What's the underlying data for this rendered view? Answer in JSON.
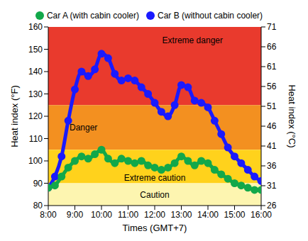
{
  "chart_data": {
    "type": "line",
    "x": [
      8,
      8.25,
      8.5,
      8.75,
      9,
      9.25,
      9.5,
      9.75,
      10,
      10.25,
      10.5,
      10.75,
      11,
      11.25,
      11.5,
      11.75,
      12,
      12.25,
      12.5,
      12.75,
      13,
      13.25,
      13.5,
      13.75,
      14,
      14.25,
      14.5,
      14.75,
      15,
      15.25,
      15.5,
      15.75,
      16
    ],
    "xlim": [
      8,
      16
    ],
    "xticks": [
      {
        "value": 8,
        "label": "8:00"
      },
      {
        "value": 9,
        "label": "9:00"
      },
      {
        "value": 10,
        "label": "10:00"
      },
      {
        "value": 11,
        "label": "11:00"
      },
      {
        "value": 12,
        "label": "12:00"
      },
      {
        "value": 13,
        "label": "13:00"
      },
      {
        "value": 14,
        "label": "14:00"
      },
      {
        "value": 15,
        "label": "15:00"
      },
      {
        "value": 16,
        "label": "16:00"
      }
    ],
    "x_label": "Times (GMT+7)",
    "y_label": "Heat index (°F)",
    "ylim": [
      80,
      160
    ],
    "yticks": [
      80,
      90,
      100,
      110,
      120,
      130,
      140,
      150,
      160
    ],
    "y2_label": "Heat index (°C)",
    "y2lim": [
      26,
      71
    ],
    "y2ticks": [
      26,
      31,
      36,
      41,
      46,
      51,
      56,
      61,
      66,
      71
    ],
    "legend": "top",
    "marker": "circle",
    "series": [
      {
        "name": "Car B (without cabin cooler)",
        "color": "#1a1aff",
        "values": [
          88,
          93,
          102,
          118,
          132,
          140,
          138,
          141,
          148,
          146,
          139,
          136,
          137,
          136,
          133,
          130,
          126,
          122,
          120,
          125,
          134,
          133,
          127,
          126,
          124,
          118,
          112,
          106,
          102,
          99,
          96,
          93,
          91
        ]
      },
      {
        "name": "Car A (with cabin cooler)",
        "color": "#12a84a",
        "values": [
          88,
          89,
          93,
          97,
          100,
          102,
          101,
          103,
          105,
          101,
          99,
          101,
          100,
          99,
          100,
          98,
          97,
          96,
          97,
          99,
          102,
          100,
          98,
          100,
          99,
          96,
          94,
          92,
          90,
          89,
          88,
          87,
          87
        ]
      }
    ],
    "annotations": [
      {
        "text": "Extreme danger",
        "y_from": 125,
        "y_to": 160,
        "color": "#e93a2d"
      },
      {
        "text": "Danger",
        "y_from": 105,
        "y_to": 125,
        "color": "#f39020"
      },
      {
        "text": "Extreme caution",
        "y_from": 90,
        "y_to": 105,
        "color": "#ffd21c"
      },
      {
        "text": "Caution",
        "y_from": 80,
        "y_to": 90,
        "color": "#fdf5b0"
      }
    ]
  }
}
